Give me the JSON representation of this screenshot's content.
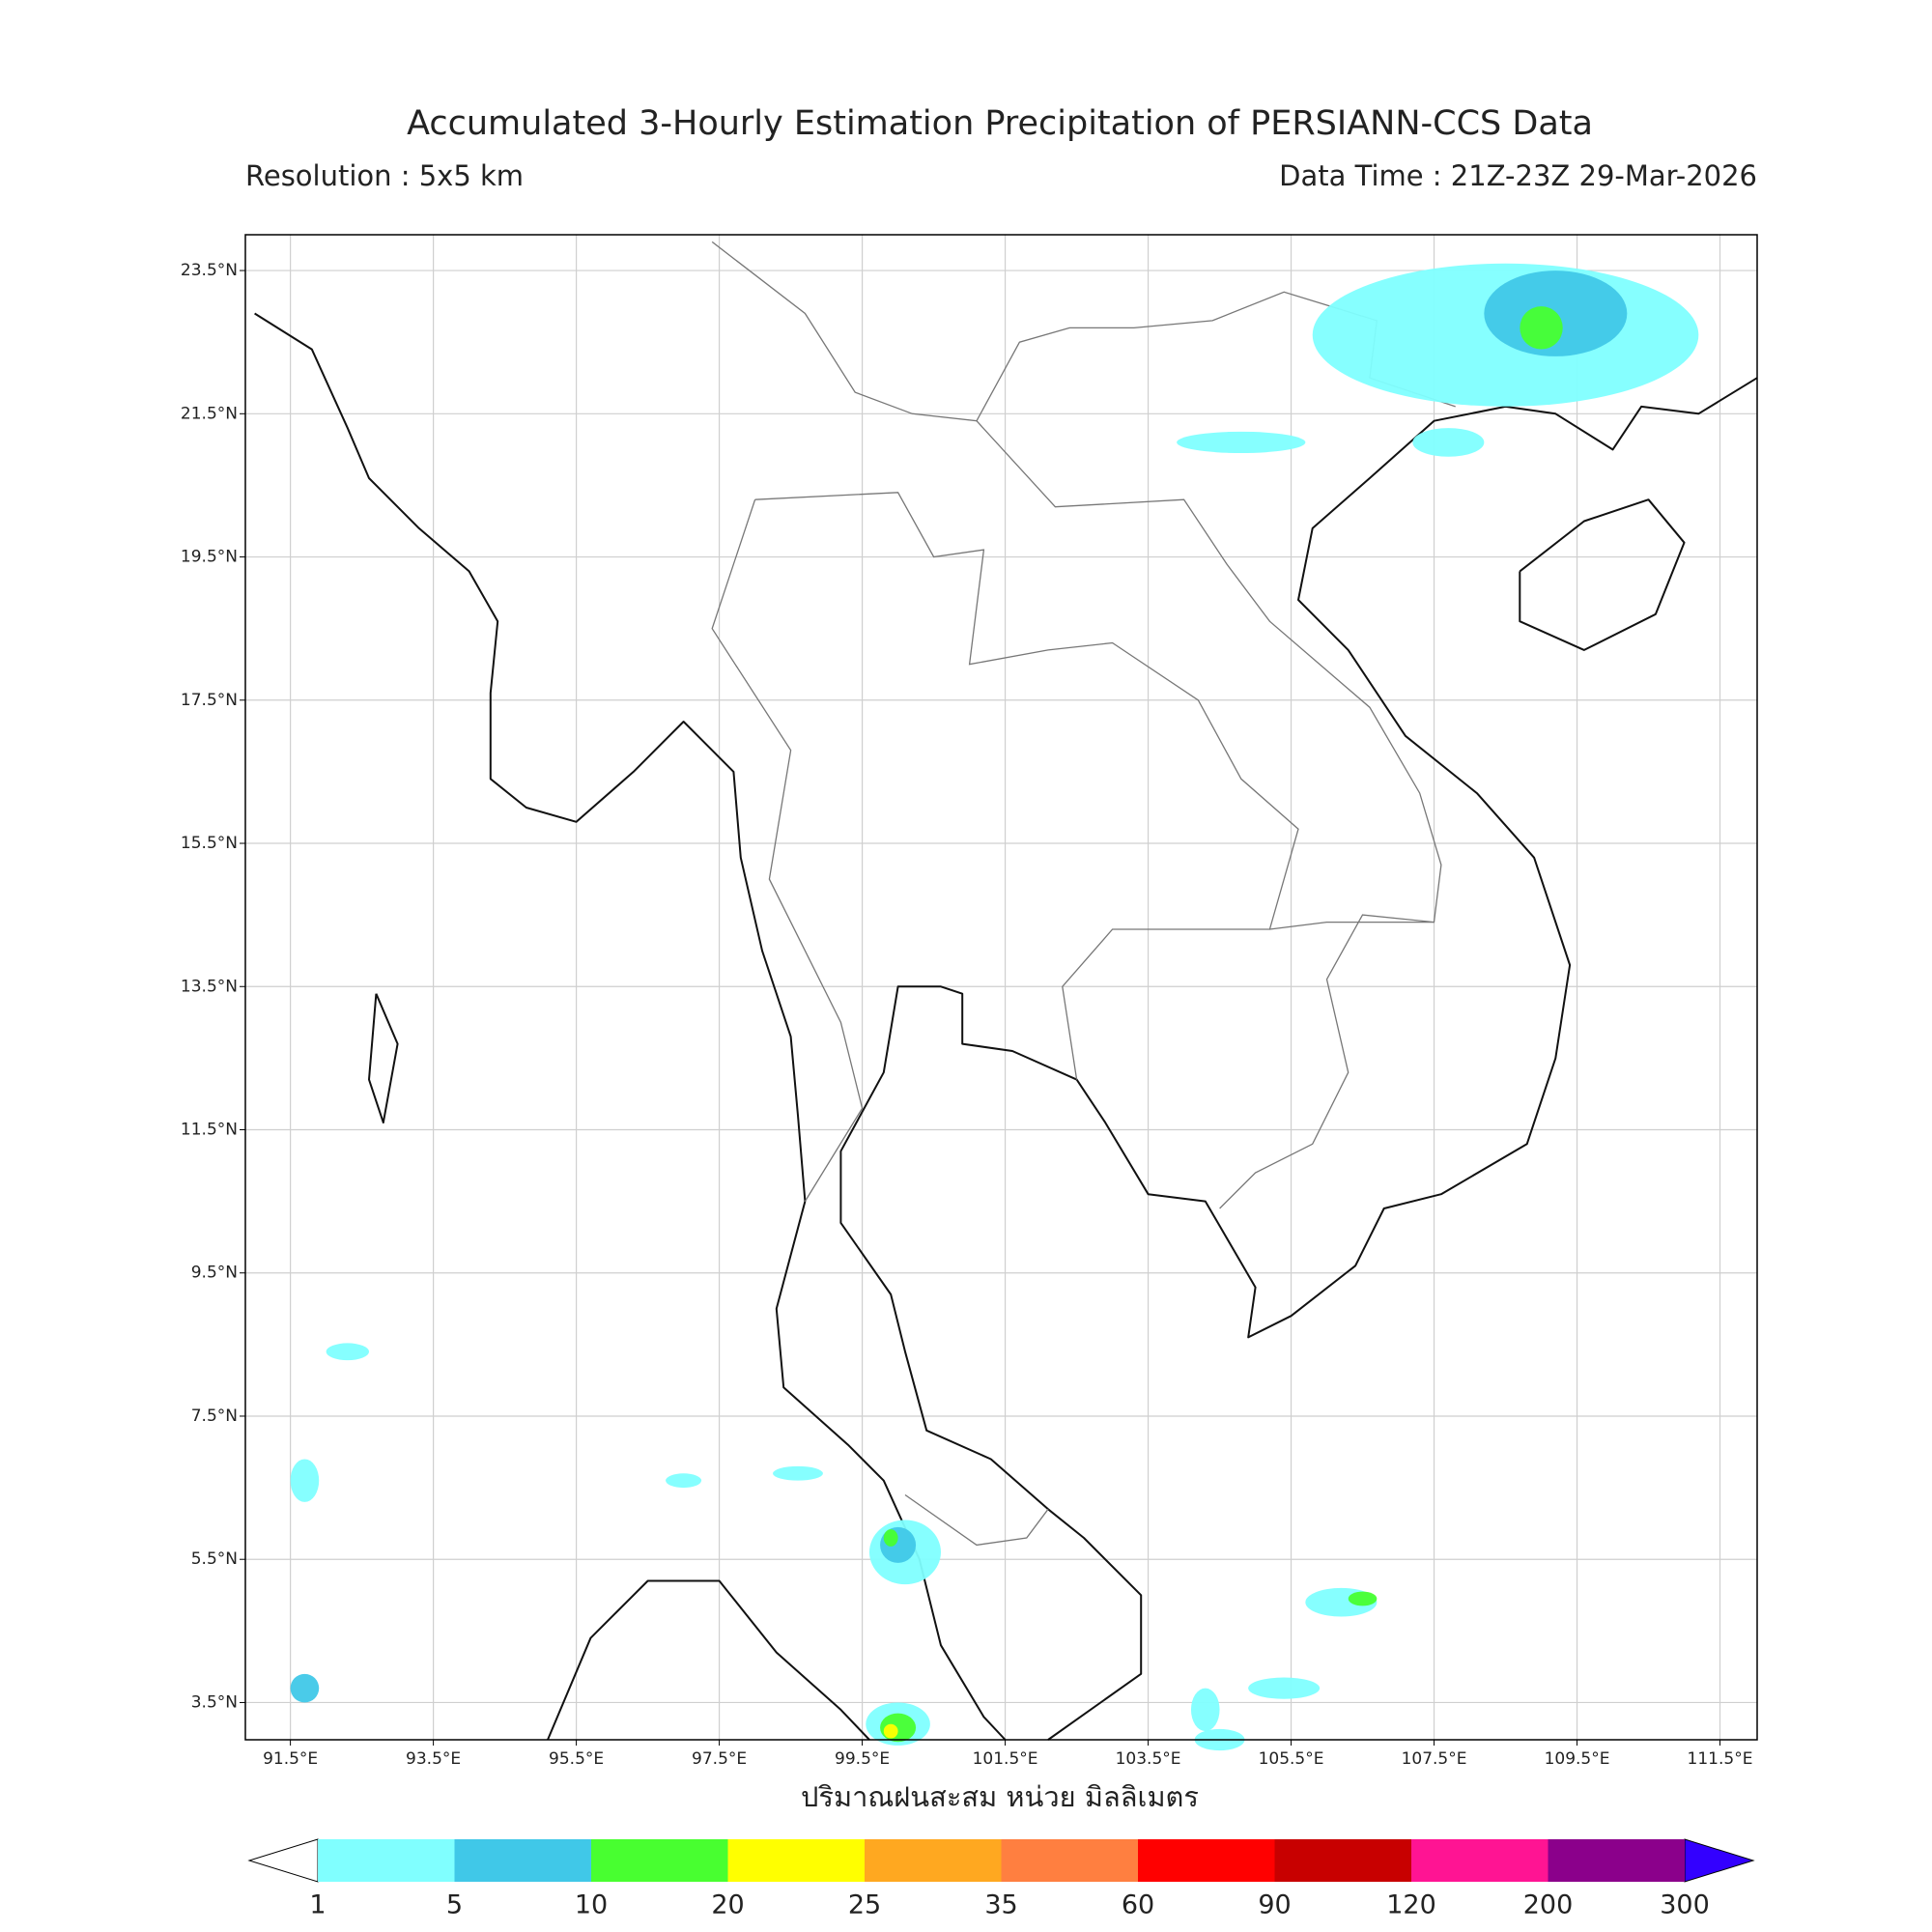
{
  "header": {
    "title": "Accumulated 3-Hourly Estimation Precipitation of PERSIANN-CCS Data",
    "resolution": "Resolution : 5x5 km",
    "data_time": "Data Time : 21Z-23Z 29-Mar-2026"
  },
  "map": {
    "lonlim": [
      90.87,
      112.02
    ],
    "latlim": [
      2.98,
      24.0
    ],
    "lon_ticks": [
      {
        "value": 91.5,
        "label": "91.5°E"
      },
      {
        "value": 93.5,
        "label": "93.5°E"
      },
      {
        "value": 95.5,
        "label": "95.5°E"
      },
      {
        "value": 97.5,
        "label": "97.5°E"
      },
      {
        "value": 99.5,
        "label": "99.5°E"
      },
      {
        "value": 101.5,
        "label": "101.5°E"
      },
      {
        "value": 103.5,
        "label": "103.5°E"
      },
      {
        "value": 105.5,
        "label": "105.5°E"
      },
      {
        "value": 107.5,
        "label": "107.5°E"
      },
      {
        "value": 109.5,
        "label": "109.5°E"
      },
      {
        "value": 111.5,
        "label": "111.5°E"
      }
    ],
    "lat_ticks": [
      {
        "value": 23.5,
        "label": "23.5°N"
      },
      {
        "value": 21.5,
        "label": "21.5°N"
      },
      {
        "value": 19.5,
        "label": "19.5°N"
      },
      {
        "value": 17.5,
        "label": "17.5°N"
      },
      {
        "value": 15.5,
        "label": "15.5°N"
      },
      {
        "value": 13.5,
        "label": "13.5°N"
      },
      {
        "value": 11.5,
        "label": "11.5°N"
      },
      {
        "value": 9.5,
        "label": "9.5°N"
      },
      {
        "value": 7.5,
        "label": "7.5°N"
      },
      {
        "value": 5.5,
        "label": "5.5°N"
      },
      {
        "value": 3.5,
        "label": "3.5°N"
      }
    ],
    "grid": true
  },
  "colorbar": {
    "label": "ปริมาณฝนสะสม หน่วย มิลลิเมตร",
    "levels": [
      1,
      5,
      10,
      20,
      25,
      35,
      60,
      90,
      120,
      200,
      300
    ],
    "colors": [
      "#80ffff",
      "#40c8e8",
      "#48ff30",
      "#ffff00",
      "#ffa820",
      "#ff7f40",
      "#ff0000",
      "#c80000",
      "#ff1493",
      "#8b008b"
    ],
    "under_color": "#ffffff",
    "over_color": "#3300ff"
  }
}
